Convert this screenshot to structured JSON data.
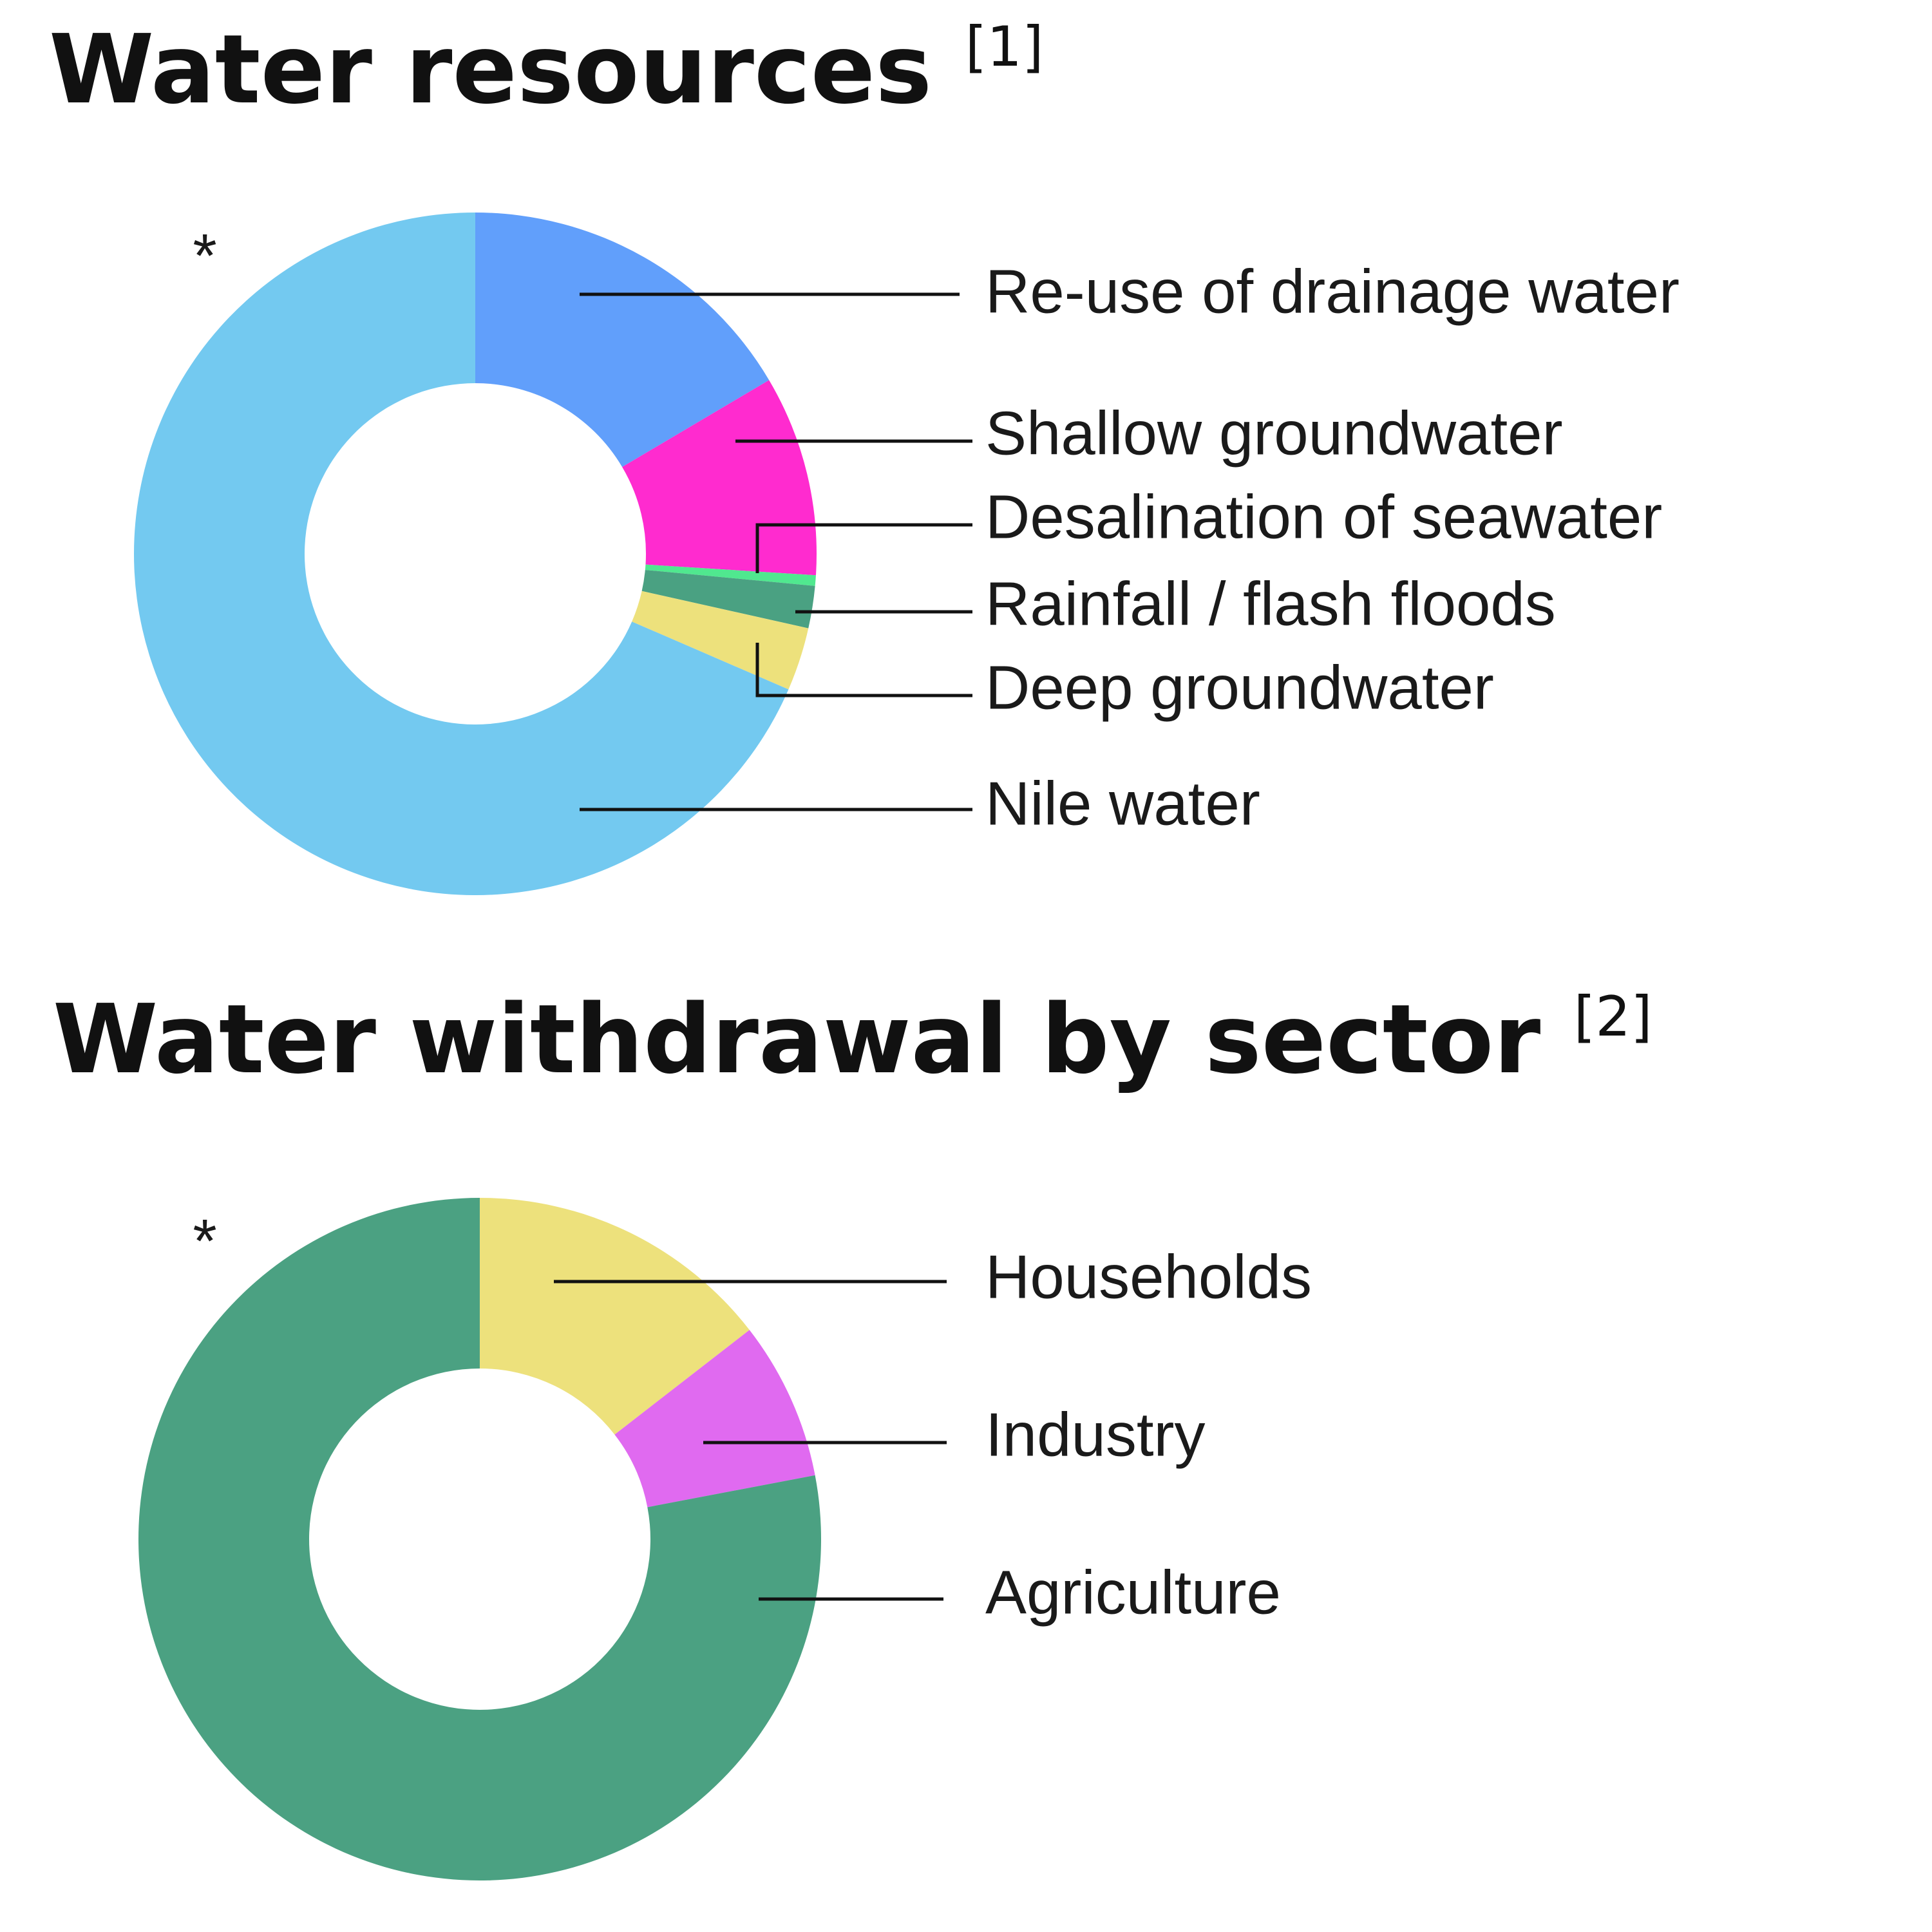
{
  "chart_data": [
    {
      "type": "pie",
      "title": "Water resources",
      "title_ref": "[1]",
      "marker": "*",
      "categories": [
        "Re-use of drainage water",
        "Shallow groundwater",
        "Desalination of seawater",
        "Rainfall / flash floods",
        "Deep groundwater",
        "Nile water"
      ],
      "values": [
        16.5,
        9.5,
        0.5,
        2.0,
        3.0,
        68.5
      ],
      "colors": [
        "#619ffb",
        "#ff2bcf",
        "#50e88f",
        "#4aa182",
        "#ede17c",
        "#73c9f0"
      ]
    },
    {
      "type": "pie",
      "title": "Water withdrawal by sector",
      "title_ref": "[2]",
      "marker": "*",
      "categories": [
        "Households",
        "Industry",
        "Agriculture"
      ],
      "values": [
        14.5,
        7.5,
        78.0
      ],
      "colors": [
        "#ede17c",
        "#e06af0",
        "#4ba182"
      ]
    }
  ]
}
